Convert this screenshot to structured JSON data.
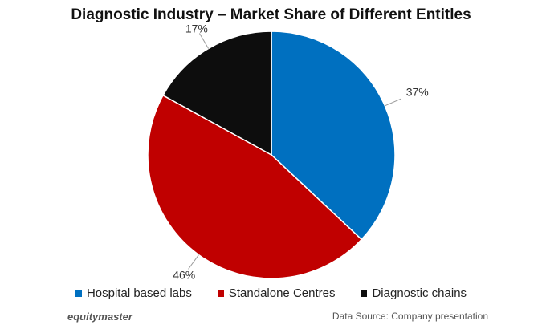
{
  "chart_data": {
    "type": "pie",
    "title": "Diagnostic Industry – Market Share of Different Entitles",
    "slices": [
      {
        "label": "Hospital based labs",
        "value": 37,
        "display": "37%",
        "color": "#0070c0"
      },
      {
        "label": "Standalone Centres",
        "value": 46,
        "display": "46%",
        "color": "#c00000"
      },
      {
        "label": "Diagnostic chains",
        "value": 17,
        "display": "17%",
        "color": "#0d0d0d"
      }
    ],
    "legend_position": "bottom"
  },
  "footer": {
    "brand": "equitymaster",
    "source": "Data Source: Company presentation"
  }
}
